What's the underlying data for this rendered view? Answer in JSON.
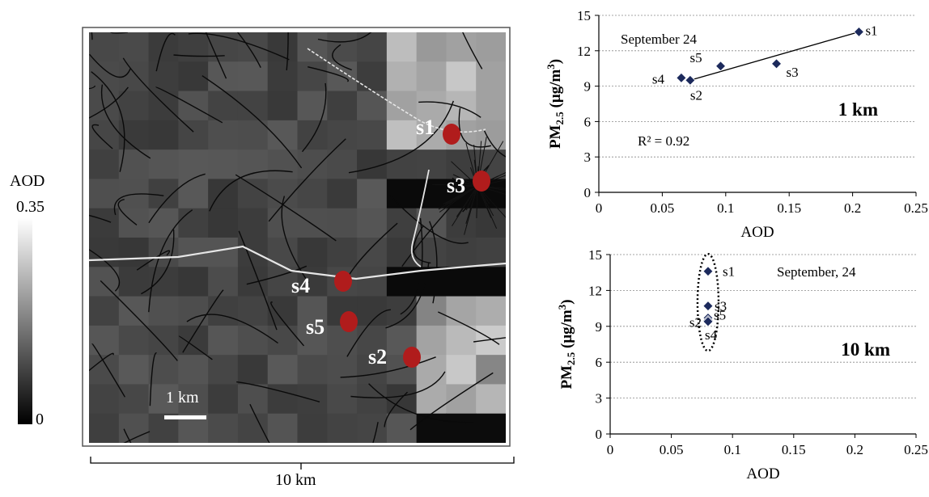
{
  "map": {
    "colorbar": {
      "title": "AOD",
      "max_label": "0.35",
      "min_label": "0",
      "colors": [
        "#000000",
        "#ffffff"
      ]
    },
    "scalebar_label": "1 km",
    "extent_label": "10 km",
    "site_color": "#b01c1c",
    "sites": [
      {
        "label": "s1"
      },
      {
        "label": "s3"
      },
      {
        "label": "s4"
      },
      {
        "label": "s5"
      },
      {
        "label": "s2"
      }
    ]
  },
  "chart_data": [
    {
      "type": "scatter",
      "annotation": "September 24",
      "resolution_label": "1 km",
      "r2_label": "R² = 0.92",
      "xlabel": "AOD",
      "ylabel": {
        "base": "PM",
        "sub": "2.5",
        "unit_pre": " (μg/m",
        "unit_sup": "3",
        "unit_post": ")"
      },
      "xlim": [
        0,
        0.25
      ],
      "ylim": [
        0,
        15
      ],
      "xticks": [
        "0",
        "0.05",
        "0.1",
        "0.15",
        "0.2",
        "0.25"
      ],
      "yticks": [
        "0",
        "3",
        "6",
        "9",
        "12",
        "15"
      ],
      "grid": "horizontal",
      "trendline": {
        "x": [
          0.072,
          0.205
        ],
        "y": [
          9.5,
          13.6
        ]
      },
      "marker_color": "#1c2a5c",
      "points": [
        {
          "label": "s1",
          "x": 0.205,
          "y": 13.6
        },
        {
          "label": "s5",
          "x": 0.096,
          "y": 10.7
        },
        {
          "label": "s3",
          "x": 0.14,
          "y": 10.9
        },
        {
          "label": "s4",
          "x": 0.065,
          "y": 9.7
        },
        {
          "label": "s2",
          "x": 0.072,
          "y": 9.5
        }
      ]
    },
    {
      "type": "scatter",
      "annotation": "September, 24",
      "resolution_label": "10 km",
      "xlabel": "AOD",
      "ylabel": {
        "base": "PM",
        "sub": "2.5",
        "unit_pre": " (μg/m",
        "unit_sup": "3",
        "unit_post": ")"
      },
      "xlim": [
        0,
        0.25
      ],
      "ylim": [
        0,
        15
      ],
      "xticks": [
        "0",
        "0.05",
        "0.1",
        "0.15",
        "0.2",
        "0.25"
      ],
      "yticks": [
        "0",
        "3",
        "6",
        "9",
        "12",
        "15"
      ],
      "grid": "horizontal",
      "marker_color": "#1c2a5c",
      "points": [
        {
          "label": "s1",
          "x": 0.08,
          "y": 13.6
        },
        {
          "label": "s3",
          "x": 0.08,
          "y": 10.7
        },
        {
          "label": "s5",
          "x": 0.08,
          "y": 9.7
        },
        {
          "label": "s2",
          "x": 0.08,
          "y": 9.5
        },
        {
          "label": "s4",
          "x": 0.08,
          "y": 9.4
        }
      ]
    }
  ]
}
